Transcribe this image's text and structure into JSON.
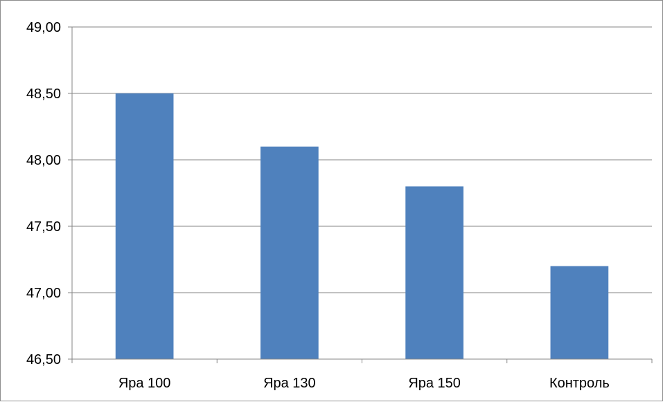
{
  "chart_data": {
    "type": "bar",
    "categories": [
      "Яра 100",
      "Яра 130",
      "Яра 150",
      "Контроль"
    ],
    "values": [
      48.5,
      48.1,
      47.8,
      47.2
    ],
    "ylim": [
      46.5,
      49.0
    ],
    "yticks": [
      "46,50",
      "47,00",
      "47,50",
      "48,00",
      "48,50",
      "49,00"
    ],
    "ytick_values": [
      46.5,
      47.0,
      47.5,
      48.0,
      48.5,
      49.0
    ],
    "grid": true,
    "bar_color": "#4f81bd",
    "grid_color": "#868686",
    "title": "",
    "xlabel": "",
    "ylabel": ""
  }
}
